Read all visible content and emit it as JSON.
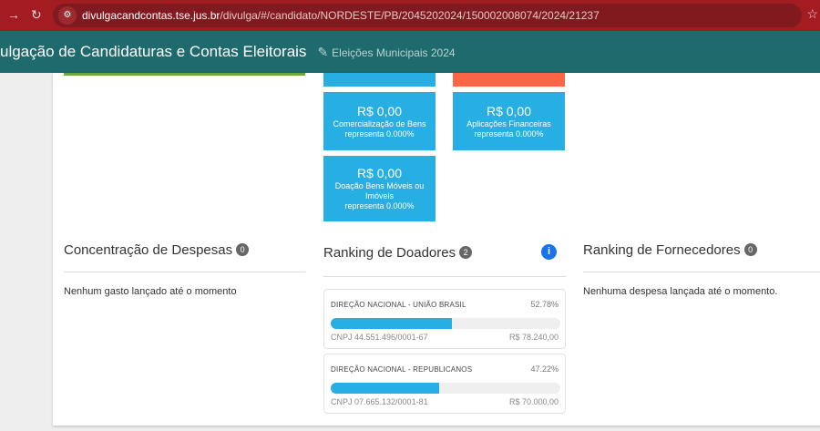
{
  "browser": {
    "url_host": "divulgacandcontas.tse.jus.br",
    "url_path": "/divulga/#/candidato/NORDESTE/PB/2045202024/150002008074/2024/21237"
  },
  "header": {
    "title": "ulgação de Candidaturas e Contas Eleitorais",
    "subtitle": "Eleições Municipais 2024"
  },
  "tiles": [
    {
      "value": "R$ 0,00",
      "label": "Comercialização de Bens",
      "share": "representa 0.000%"
    },
    {
      "value": "R$ 0,00",
      "label": "Aplicações Financeiras",
      "share": "representa 0.000%"
    },
    {
      "value": "R$ 0,00",
      "label": "Doação Bens Móveis ou Imóveis",
      "share": "representa 0.000%"
    }
  ],
  "despesas": {
    "title": "Concentração de Despesas",
    "count": "0",
    "message": "Nenhum gasto lançado até o momento"
  },
  "doadores": {
    "title": "Ranking de Doadores",
    "count": "2",
    "items": [
      {
        "name": "DIREÇÃO NACIONAL - UNIÃO BRASIL",
        "percent": "52.78%",
        "fill": 52.78,
        "cnpj": "CNPJ 44.551.496/0001-67",
        "amount": "R$ 78.240,00"
      },
      {
        "name": "DIREÇÃO NACIONAL - REPUBLICANOS",
        "percent": "47.22%",
        "fill": 47.22,
        "cnpj": "CNPJ 07.665.132/0001-81",
        "amount": "R$ 70.000,00"
      }
    ]
  },
  "fornecedores": {
    "title": "Ranking de Fornecedores",
    "count": "0",
    "message": "Nenhuma despesa lançada até o momento."
  }
}
